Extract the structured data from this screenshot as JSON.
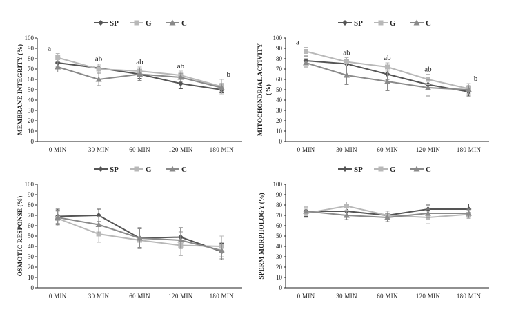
{
  "colors": {
    "SP": "#555555",
    "G": "#b8b8b8",
    "C": "#8a8a8a",
    "axis": "#222222"
  },
  "legend_labels": [
    "SP",
    "G",
    "C"
  ],
  "chart_data": [
    {
      "type": "line",
      "ylabel": "MEMBRANE INTEGRITY (%)",
      "ylabel_lines": [
        "MEMBRANE INTEGRITY (%)"
      ],
      "categories": [
        "0 MIN",
        "30 MIN",
        "60 MIN",
        "120 MIN",
        "180 MIN"
      ],
      "ylim": [
        0,
        100
      ],
      "yticks": [
        0,
        10,
        20,
        30,
        40,
        50,
        60,
        70,
        80,
        90,
        100
      ],
      "series": [
        {
          "name": "SP",
          "values": [
            76,
            71,
            65,
            56,
            50
          ],
          "errors": [
            4,
            4,
            4,
            5,
            3
          ]
        },
        {
          "name": "G",
          "values": [
            81,
            70,
            68,
            64,
            53
          ],
          "errors": [
            4,
            4,
            4,
            4,
            7
          ]
        },
        {
          "name": "C",
          "values": [
            72,
            60,
            65,
            62,
            52
          ],
          "errors": [
            5,
            6,
            6,
            4,
            4
          ]
        }
      ],
      "annotations": [
        "a",
        "ab",
        "ab",
        "ab",
        "b"
      ]
    },
    {
      "type": "line",
      "ylabel": "MITOCHONDRIAL ACTIVITY (%)",
      "ylabel_lines": [
        "MITOCHONDRIAL ACTIVITY",
        "(%)"
      ],
      "categories": [
        "0 MIN",
        "30 MIN",
        "60 MIN",
        "120 MIN",
        "180 MIN"
      ],
      "ylim": [
        0,
        100
      ],
      "yticks": [
        0,
        10,
        20,
        30,
        40,
        50,
        60,
        70,
        80,
        90,
        100
      ],
      "series": [
        {
          "name": "SP",
          "values": [
            78,
            75,
            65,
            55,
            48
          ],
          "errors": [
            4,
            4,
            5,
            5,
            4
          ]
        },
        {
          "name": "G",
          "values": [
            87,
            77,
            72,
            60,
            51
          ],
          "errors": [
            4,
            4,
            4,
            5,
            5
          ]
        },
        {
          "name": "C",
          "values": [
            76,
            64,
            58,
            52,
            50
          ],
          "errors": [
            4,
            9,
            9,
            8,
            4
          ]
        }
      ],
      "annotations": [
        "a",
        "ab",
        "ab",
        "ab",
        "b"
      ]
    },
    {
      "type": "line",
      "ylabel": "OSMOTIC RESPONSE (%)",
      "ylabel_lines": [
        "OSMOTIC RESPONSE (%)"
      ],
      "categories": [
        "0 MIN",
        "30 MIN",
        "60 MIN",
        "120 MIN",
        "180 MIN"
      ],
      "ylim": [
        0,
        100
      ],
      "yticks": [
        0,
        10,
        20,
        30,
        40,
        50,
        60,
        70,
        80,
        90,
        100
      ],
      "series": [
        {
          "name": "SP",
          "values": [
            69,
            70,
            48,
            49,
            35
          ],
          "errors": [
            7,
            6,
            10,
            9,
            8
          ]
        },
        {
          "name": "G",
          "values": [
            67,
            52,
            46,
            41,
            40
          ],
          "errors": [
            7,
            8,
            7,
            10,
            10
          ]
        },
        {
          "name": "C",
          "values": [
            68,
            61,
            48,
            46,
            36
          ],
          "errors": [
            7,
            8,
            9,
            8,
            8
          ]
        }
      ],
      "annotations": []
    },
    {
      "type": "line",
      "ylabel": "SPERM MORPHOLOGY (%)",
      "ylabel_lines": [
        "SPERM MORPHOLOGY (%)"
      ],
      "categories": [
        "0 MIN",
        "30 MIN",
        "60 MIN",
        "120 MIN",
        "180 MIN"
      ],
      "ylim": [
        0,
        100
      ],
      "yticks": [
        0,
        10,
        20,
        30,
        40,
        50,
        60,
        70,
        80,
        90,
        100
      ],
      "series": [
        {
          "name": "SP",
          "values": [
            74,
            74,
            70,
            76,
            76
          ],
          "errors": [
            5,
            4,
            4,
            4,
            5
          ]
        },
        {
          "name": "G",
          "values": [
            72,
            79,
            70,
            68,
            71
          ],
          "errors": [
            4,
            4,
            4,
            6,
            4
          ]
        },
        {
          "name": "C",
          "values": [
            74,
            70,
            68,
            72,
            72
          ],
          "errors": [
            4,
            4,
            4,
            4,
            4
          ]
        }
      ],
      "annotations": []
    }
  ]
}
